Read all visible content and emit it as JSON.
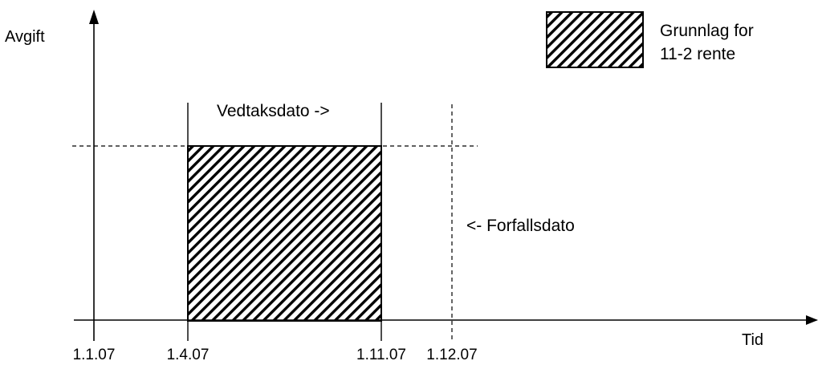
{
  "axes": {
    "y_label": "Avgift",
    "x_label": "Tid"
  },
  "ticks": [
    "1.1.07",
    "1.4.07",
    "1.11.07",
    "1.12.07"
  ],
  "annotations": {
    "vedtaksdato": "Vedtaksdato ->",
    "forfallsdato": "<- Forfallsdato"
  },
  "legend": {
    "line1": "Grunnlag for",
    "line2": "11-2 rente"
  },
  "colors": {
    "line": "#000000",
    "background": "#ffffff"
  }
}
